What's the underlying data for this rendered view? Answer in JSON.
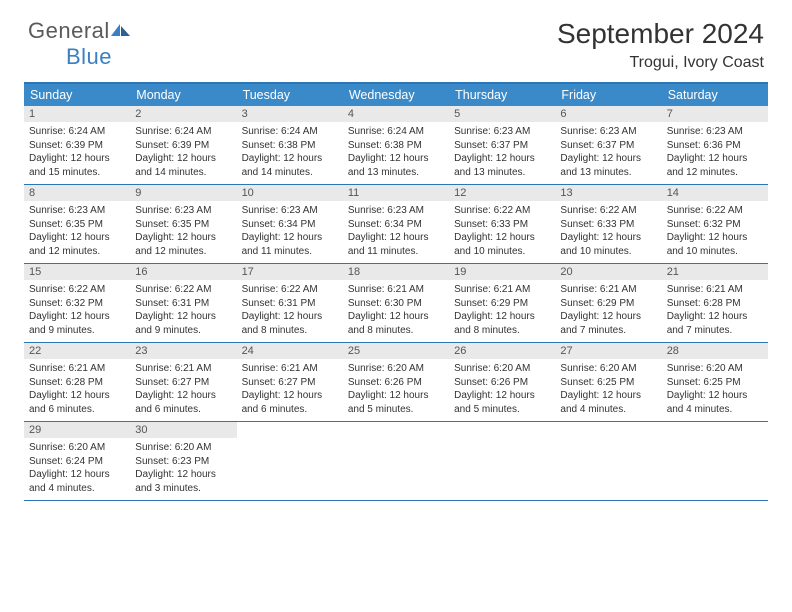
{
  "brand": {
    "general": "General",
    "blue": "Blue"
  },
  "title": "September 2024",
  "location": "Trogui, Ivory Coast",
  "colors": {
    "header_bg": "#3a8ac9",
    "border": "#2e75b6",
    "daynum_bg": "#e9e9e9",
    "text": "#333333",
    "logo_gray": "#5a5a5a",
    "logo_blue": "#3a7fc4"
  },
  "weekdays": [
    "Sunday",
    "Monday",
    "Tuesday",
    "Wednesday",
    "Thursday",
    "Friday",
    "Saturday"
  ],
  "days": [
    {
      "n": "1",
      "sunrise": "6:24 AM",
      "sunset": "6:39 PM",
      "daylight": "12 hours and 15 minutes."
    },
    {
      "n": "2",
      "sunrise": "6:24 AM",
      "sunset": "6:39 PM",
      "daylight": "12 hours and 14 minutes."
    },
    {
      "n": "3",
      "sunrise": "6:24 AM",
      "sunset": "6:38 PM",
      "daylight": "12 hours and 14 minutes."
    },
    {
      "n": "4",
      "sunrise": "6:24 AM",
      "sunset": "6:38 PM",
      "daylight": "12 hours and 13 minutes."
    },
    {
      "n": "5",
      "sunrise": "6:23 AM",
      "sunset": "6:37 PM",
      "daylight": "12 hours and 13 minutes."
    },
    {
      "n": "6",
      "sunrise": "6:23 AM",
      "sunset": "6:37 PM",
      "daylight": "12 hours and 13 minutes."
    },
    {
      "n": "7",
      "sunrise": "6:23 AM",
      "sunset": "6:36 PM",
      "daylight": "12 hours and 12 minutes."
    },
    {
      "n": "8",
      "sunrise": "6:23 AM",
      "sunset": "6:35 PM",
      "daylight": "12 hours and 12 minutes."
    },
    {
      "n": "9",
      "sunrise": "6:23 AM",
      "sunset": "6:35 PM",
      "daylight": "12 hours and 12 minutes."
    },
    {
      "n": "10",
      "sunrise": "6:23 AM",
      "sunset": "6:34 PM",
      "daylight": "12 hours and 11 minutes."
    },
    {
      "n": "11",
      "sunrise": "6:23 AM",
      "sunset": "6:34 PM",
      "daylight": "12 hours and 11 minutes."
    },
    {
      "n": "12",
      "sunrise": "6:22 AM",
      "sunset": "6:33 PM",
      "daylight": "12 hours and 10 minutes."
    },
    {
      "n": "13",
      "sunrise": "6:22 AM",
      "sunset": "6:33 PM",
      "daylight": "12 hours and 10 minutes."
    },
    {
      "n": "14",
      "sunrise": "6:22 AM",
      "sunset": "6:32 PM",
      "daylight": "12 hours and 10 minutes."
    },
    {
      "n": "15",
      "sunrise": "6:22 AM",
      "sunset": "6:32 PM",
      "daylight": "12 hours and 9 minutes."
    },
    {
      "n": "16",
      "sunrise": "6:22 AM",
      "sunset": "6:31 PM",
      "daylight": "12 hours and 9 minutes."
    },
    {
      "n": "17",
      "sunrise": "6:22 AM",
      "sunset": "6:31 PM",
      "daylight": "12 hours and 8 minutes."
    },
    {
      "n": "18",
      "sunrise": "6:21 AM",
      "sunset": "6:30 PM",
      "daylight": "12 hours and 8 minutes."
    },
    {
      "n": "19",
      "sunrise": "6:21 AM",
      "sunset": "6:29 PM",
      "daylight": "12 hours and 8 minutes."
    },
    {
      "n": "20",
      "sunrise": "6:21 AM",
      "sunset": "6:29 PM",
      "daylight": "12 hours and 7 minutes."
    },
    {
      "n": "21",
      "sunrise": "6:21 AM",
      "sunset": "6:28 PM",
      "daylight": "12 hours and 7 minutes."
    },
    {
      "n": "22",
      "sunrise": "6:21 AM",
      "sunset": "6:28 PM",
      "daylight": "12 hours and 6 minutes."
    },
    {
      "n": "23",
      "sunrise": "6:21 AM",
      "sunset": "6:27 PM",
      "daylight": "12 hours and 6 minutes."
    },
    {
      "n": "24",
      "sunrise": "6:21 AM",
      "sunset": "6:27 PM",
      "daylight": "12 hours and 6 minutes."
    },
    {
      "n": "25",
      "sunrise": "6:20 AM",
      "sunset": "6:26 PM",
      "daylight": "12 hours and 5 minutes."
    },
    {
      "n": "26",
      "sunrise": "6:20 AM",
      "sunset": "6:26 PM",
      "daylight": "12 hours and 5 minutes."
    },
    {
      "n": "27",
      "sunrise": "6:20 AM",
      "sunset": "6:25 PM",
      "daylight": "12 hours and 4 minutes."
    },
    {
      "n": "28",
      "sunrise": "6:20 AM",
      "sunset": "6:25 PM",
      "daylight": "12 hours and 4 minutes."
    },
    {
      "n": "29",
      "sunrise": "6:20 AM",
      "sunset": "6:24 PM",
      "daylight": "12 hours and 4 minutes."
    },
    {
      "n": "30",
      "sunrise": "6:20 AM",
      "sunset": "6:23 PM",
      "daylight": "12 hours and 3 minutes."
    }
  ],
  "labels": {
    "sunrise": "Sunrise: ",
    "sunset": "Sunset: ",
    "daylight": "Daylight: "
  }
}
